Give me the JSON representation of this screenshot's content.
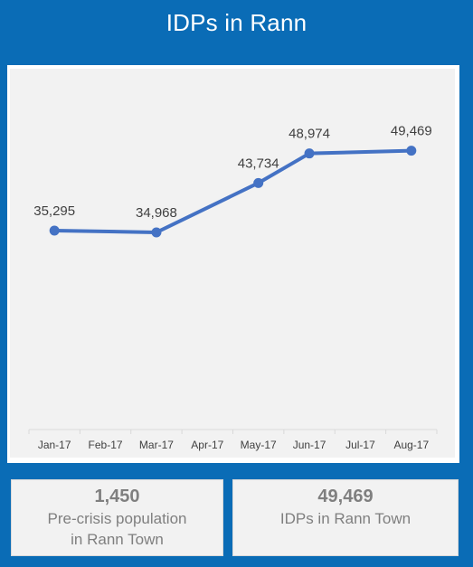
{
  "header": {
    "title": "IDPs in Rann"
  },
  "chart_data": {
    "type": "line",
    "title": "",
    "xlabel": "",
    "ylabel": "",
    "categories": [
      "Jan-17",
      "Feb-17",
      "Mar-17",
      "Apr-17",
      "May-17",
      "Jun-17",
      "Jul-17",
      "Aug-17"
    ],
    "series": [
      {
        "points": [
          {
            "x": "Jan-17",
            "y": 35295,
            "label": "35,295"
          },
          {
            "x": "Mar-17",
            "y": 34968,
            "label": "34,968"
          },
          {
            "x": "May-17",
            "y": 43734,
            "label": "43,734"
          },
          {
            "x": "Jun-17",
            "y": 48974,
            "label": "48,974"
          },
          {
            "x": "Aug-17",
            "y": 49469,
            "label": "49,469"
          }
        ],
        "color": "#4472C4"
      }
    ],
    "ylim": [
      0,
      64000
    ],
    "grid": false,
    "axis_line_color": "#d9d9d9"
  },
  "cards": {
    "left": {
      "value": "1,450",
      "label_line1": "Pre-crisis population",
      "label_line2": "in Rann Town"
    },
    "right": {
      "value": "49,469",
      "label_line1": "IDPs in Rann Town"
    }
  },
  "colors": {
    "frame_blue": "#0A6CB6",
    "panel_gray": "#F2F2F2",
    "line_blue": "#4472C4",
    "card_text": "#7F7F7F"
  }
}
